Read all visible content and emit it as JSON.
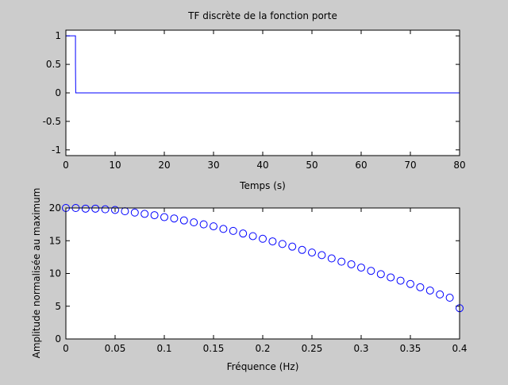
{
  "chart_data": [
    {
      "type": "line",
      "title": "TF discrète de la fonction porte",
      "xlabel": "Temps (s)",
      "ylabel": "",
      "xlim": [
        0,
        80
      ],
      "ylim": [
        -1.1,
        1.1
      ],
      "xticks": [
        "0",
        "10",
        "20",
        "30",
        "40",
        "50",
        "60",
        "70",
        "80"
      ],
      "yticks": [
        "-1",
        "-0.5",
        "0",
        "0.5",
        "1"
      ],
      "grid": false,
      "color": "#0000ff",
      "series": [
        {
          "x": [
            0,
            1,
            1,
            1,
            1.95,
            1.95,
            2,
            80
          ],
          "y": [
            1,
            1,
            1,
            1,
            1,
            0.5,
            0,
            0
          ]
        }
      ]
    },
    {
      "type": "scatter",
      "title": "",
      "xlabel": "Fréquence (Hz)",
      "ylabel": "Amplitude normalisée au maximum",
      "xlim": [
        0,
        0.4
      ],
      "ylim": [
        0,
        20
      ],
      "xticks": [
        "0",
        "0.05",
        "0.1",
        "0.15",
        "0.2",
        "0.25",
        "0.3",
        "0.35",
        "0.4"
      ],
      "yticks": [
        "0",
        "5",
        "10",
        "15",
        "20"
      ],
      "grid": false,
      "marker": "circle",
      "color": "#0000ff",
      "series": [
        {
          "x": [
            0,
            0.01,
            0.02,
            0.03,
            0.04,
            0.05,
            0.06,
            0.07,
            0.08,
            0.09,
            0.1,
            0.11,
            0.12,
            0.13,
            0.14,
            0.15,
            0.16,
            0.17,
            0.18,
            0.19,
            0.2,
            0.21,
            0.22,
            0.23,
            0.24,
            0.25,
            0.26,
            0.27,
            0.28,
            0.29,
            0.3,
            0.31,
            0.32,
            0.33,
            0.34,
            0.35,
            0.36,
            0.37,
            0.38,
            0.39,
            0.4
          ],
          "y": [
            20,
            20,
            19.9,
            19.9,
            19.8,
            19.7,
            19.5,
            19.3,
            19.1,
            18.9,
            18.6,
            18.4,
            18.1,
            17.8,
            17.5,
            17.2,
            16.8,
            16.5,
            16.1,
            15.7,
            15.3,
            14.9,
            14.5,
            14.1,
            13.6,
            13.2,
            12.8,
            12.3,
            11.8,
            11.4,
            10.9,
            10.4,
            9.9,
            9.4,
            8.9,
            8.4,
            7.9,
            7.4,
            6.8,
            6.3,
            4.7
          ]
        }
      ]
    }
  ]
}
